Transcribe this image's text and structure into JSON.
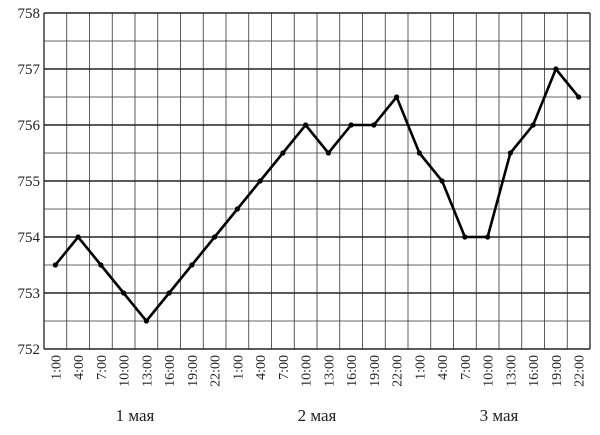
{
  "chart_data": {
    "type": "line",
    "categories": [
      "1:00",
      "4:00",
      "7:00",
      "10:00",
      "13:00",
      "16:00",
      "19:00",
      "22:00",
      "1:00",
      "4:00",
      "7:00",
      "10:00",
      "13:00",
      "16:00",
      "19:00",
      "22:00",
      "1:00",
      "4:00",
      "7:00",
      "10:00",
      "13:00",
      "16:00",
      "19:00",
      "22:00"
    ],
    "group_labels": [
      "1 мая",
      "2 мая",
      "3 мая"
    ],
    "values": [
      753.5,
      754,
      753.5,
      753,
      752.5,
      753,
      753.5,
      754,
      754.5,
      755,
      755.5,
      756,
      755.5,
      756,
      756,
      756.5,
      755.5,
      755,
      754,
      754,
      755.5,
      756,
      757,
      756.5
    ],
    "color": "#000000",
    "ylim": [
      752,
      758
    ],
    "yticks": [
      752,
      753,
      754,
      755,
      756,
      757,
      758
    ],
    "y_minor_ticks": [
      752.5,
      753.5,
      754.5,
      755.5,
      756.5,
      757.5
    ],
    "grid": true
  }
}
